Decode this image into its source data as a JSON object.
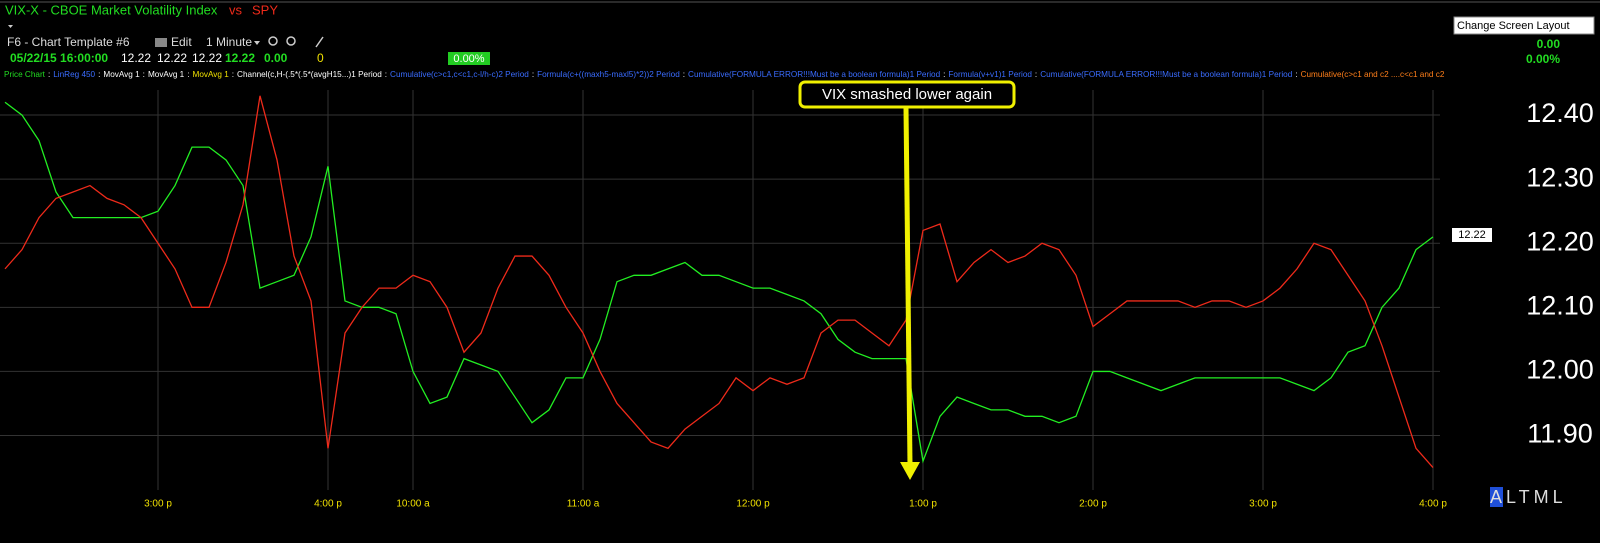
{
  "header": {
    "symbol_title": "VIX-X - CBOE Market Volatility Index",
    "joiner": "vs",
    "compare_symbol": "SPY",
    "template": "F6 - Chart Template #6",
    "edit": "Edit",
    "interval": "1 Minute",
    "change_badge": "0.00%",
    "quote_time": "05/22/15 16:00:00",
    "quote_open": "12.22",
    "quote_high": "12.22",
    "quote_low": "12.22",
    "quote_last": "12.22",
    "quote_change": "0.00",
    "quote_volume": "0",
    "tooltip": "Change Screen Layout",
    "right_change": "0.00",
    "right_change_pct": "0.00%"
  },
  "studies": {
    "separator": ":",
    "items": [
      {
        "text": "Price Chart",
        "color": "#22dd22"
      },
      {
        "text": "LinReg 450",
        "color": "#3a6cff"
      },
      {
        "text": "MovAvg 1",
        "color": "#ffffff"
      },
      {
        "text": "MovAvg 1",
        "color": "#ffffff"
      },
      {
        "text": "MovAvg 1",
        "color": "#f0e000"
      },
      {
        "text": "Channel(c,H-(.5*(.5*(avgH15...)1 Period",
        "color": "#ffffff"
      },
      {
        "text": "Cumulative(c>c1,c<c1,c-l/h-c)2 Period",
        "color": "#3a6cff"
      },
      {
        "text": "Formula(c+((maxh5-maxl5)*2))2 Period",
        "color": "#3a6cff"
      },
      {
        "text": "Cumulative(FORMULA ERROR!!!Must be a boolean formula)1 Period",
        "color": "#3a6cff"
      },
      {
        "text": "Formula(v+v1)1 Period",
        "color": "#3a6cff"
      },
      {
        "text": "Cumulative(FORMULA ERROR!!!Must be a boolean formula)1 Period",
        "color": "#3a6cff"
      },
      {
        "text": "Cumulative(c>c1 and c2 ....c<c1  and c2",
        "color": "#ff7f1a"
      }
    ]
  },
  "footer": {
    "modes": "ALTML"
  },
  "chart_data": {
    "type": "line",
    "annotation": "VIX smashed lower again",
    "last_price_label": "12.22",
    "grid": true,
    "ylim": [
      11.815,
      12.4625
    ],
    "yticks": [
      {
        "value": 12.4,
        "label": "12.40"
      },
      {
        "value": 12.3,
        "label": "12.30"
      },
      {
        "value": 12.2,
        "label": "12.20"
      },
      {
        "value": 12.1,
        "label": "12.10"
      },
      {
        "value": 12.0,
        "label": "12.00"
      },
      {
        "value": 11.9,
        "label": "11.90"
      }
    ],
    "categories": [
      null,
      null,
      null,
      null,
      null,
      null,
      null,
      null,
      null,
      "3:00 p",
      null,
      null,
      null,
      null,
      null,
      null,
      null,
      null,
      null,
      "4:00 p",
      null,
      null,
      null,
      null,
      "10:00 a",
      null,
      null,
      null,
      null,
      null,
      null,
      null,
      null,
      null,
      "11:00 a",
      null,
      null,
      null,
      null,
      null,
      null,
      null,
      null,
      null,
      "12:00 p",
      null,
      null,
      null,
      null,
      null,
      null,
      null,
      null,
      null,
      "1:00 p",
      null,
      null,
      null,
      null,
      null,
      null,
      null,
      null,
      null,
      "2:00 p",
      null,
      null,
      null,
      null,
      null,
      null,
      null,
      null,
      null,
      "3:00 p",
      null,
      null,
      null,
      null,
      null,
      null,
      null,
      null,
      null,
      "4:00 p"
    ],
    "series": [
      {
        "name": "VIX-X - CBOE Market Volatility Index",
        "color": "#22ee22",
        "values": [
          12.42,
          12.4,
          12.36,
          12.28,
          12.24,
          12.24,
          12.24,
          12.24,
          12.24,
          12.25,
          12.29,
          12.35,
          12.35,
          12.33,
          12.29,
          12.13,
          12.14,
          12.15,
          12.21,
          12.32,
          12.11,
          12.1,
          12.1,
          12.09,
          12.0,
          11.95,
          11.96,
          12.02,
          12.01,
          12.0,
          11.96,
          11.92,
          11.94,
          11.99,
          11.99,
          12.05,
          12.14,
          12.15,
          12.15,
          12.16,
          12.17,
          12.15,
          12.15,
          12.14,
          12.13,
          12.13,
          12.12,
          12.11,
          12.09,
          12.05,
          12.03,
          12.02,
          12.02,
          12.02,
          11.86,
          11.93,
          11.96,
          11.95,
          11.94,
          11.94,
          11.93,
          11.93,
          11.92,
          11.93,
          12.0,
          12.0,
          11.99,
          11.98,
          11.97,
          11.98,
          11.99,
          11.99,
          11.99,
          11.99,
          11.99,
          11.99,
          11.98,
          11.97,
          11.99,
          12.03,
          12.04,
          12.1,
          12.13,
          12.19,
          12.21
        ]
      },
      {
        "name": "SPY",
        "color": "#ee2a1a",
        "values": [
          12.16,
          12.19,
          12.24,
          12.27,
          12.28,
          12.29,
          12.27,
          12.26,
          12.24,
          12.2,
          12.16,
          12.1,
          12.1,
          12.17,
          12.26,
          12.43,
          12.33,
          12.18,
          12.11,
          11.88,
          12.06,
          12.1,
          12.13,
          12.13,
          12.15,
          12.14,
          12.1,
          12.03,
          12.06,
          12.13,
          12.18,
          12.18,
          12.15,
          12.1,
          12.06,
          12.0,
          11.95,
          11.92,
          11.89,
          11.88,
          11.91,
          11.93,
          11.95,
          11.99,
          11.97,
          11.99,
          11.98,
          11.99,
          12.06,
          12.08,
          12.08,
          12.06,
          12.04,
          12.08,
          12.22,
          12.23,
          12.14,
          12.17,
          12.19,
          12.17,
          12.18,
          12.2,
          12.19,
          12.15,
          12.07,
          12.09,
          12.11,
          12.11,
          12.11,
          12.11,
          12.1,
          12.11,
          12.11,
          12.1,
          12.11,
          12.13,
          12.16,
          12.2,
          12.19,
          12.15,
          12.11,
          12.04,
          11.96,
          11.88,
          11.85
        ]
      }
    ]
  }
}
